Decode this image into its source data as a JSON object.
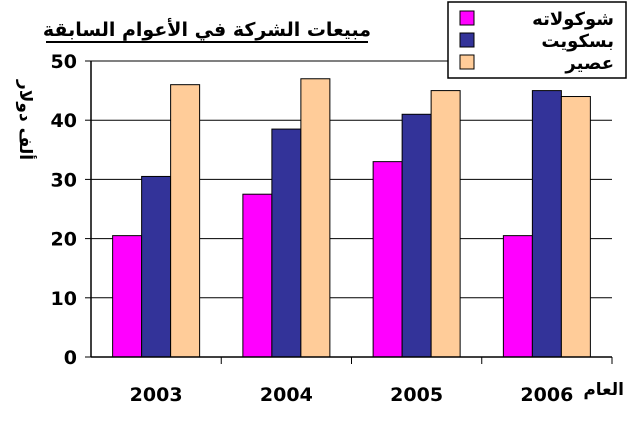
{
  "chart_data": {
    "type": "bar",
    "title": "مبيعات الشركة في الأعوام السابقة",
    "ylabel": "ألف دولار",
    "xlabel": "العام",
    "categories": [
      "2003",
      "2004",
      "2005",
      "2006"
    ],
    "ylim": [
      0,
      50
    ],
    "yticks": [
      0,
      10,
      20,
      30,
      40,
      50
    ],
    "grid": true,
    "legend_position": "top-right",
    "series": [
      {
        "name": "شوكولاته",
        "color": "#FF00FF",
        "values": [
          20.5,
          27.5,
          33,
          20.5
        ]
      },
      {
        "name": "بسكويت",
        "color": "#333399",
        "values": [
          30.5,
          38.5,
          41,
          45
        ]
      },
      {
        "name": "عصير",
        "color": "#FFCC99",
        "values": [
          46,
          47,
          45,
          44
        ]
      }
    ]
  }
}
